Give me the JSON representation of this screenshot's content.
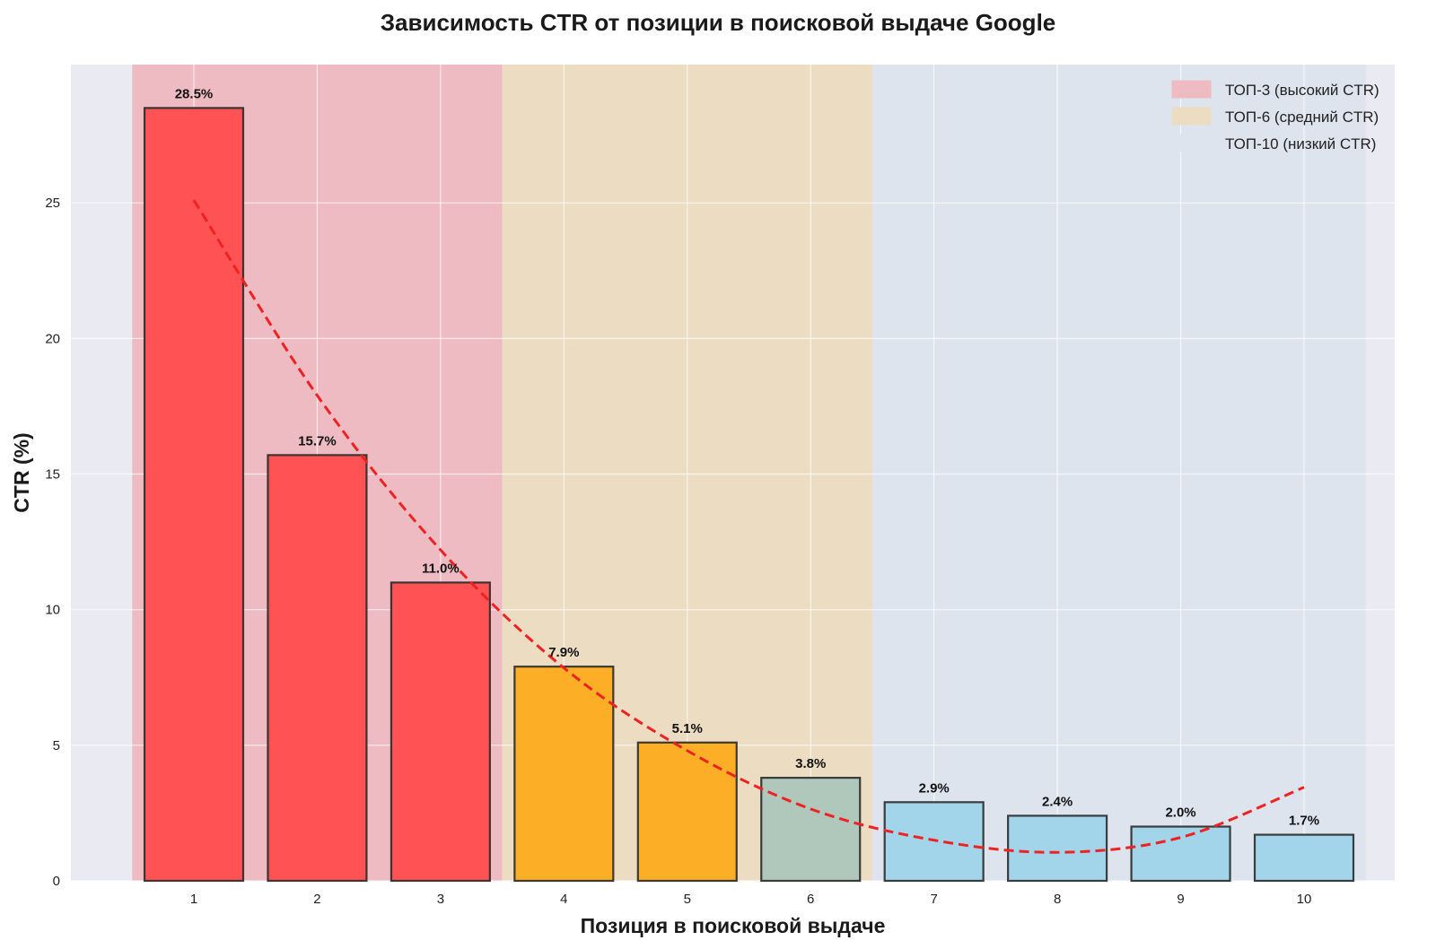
{
  "chart_data": {
    "type": "bar",
    "title": "Зависимость CTR от позиции в поисковой выдаче Google",
    "xlabel": "Позиция в поисковой выдаче",
    "ylabel": "CTR (%)",
    "categories": [
      "1",
      "2",
      "3",
      "4",
      "5",
      "6",
      "7",
      "8",
      "9",
      "10"
    ],
    "values": [
      28.5,
      15.7,
      11.0,
      7.9,
      5.1,
      3.8,
      2.9,
      2.4,
      2.0,
      1.7
    ],
    "data_labels": [
      "28.5%",
      "15.7%",
      "11.0%",
      "7.9%",
      "5.1%",
      "3.8%",
      "2.9%",
      "2.4%",
      "2.0%",
      "1.7%"
    ],
    "bar_colors": [
      "#ff5254",
      "#ff5254",
      "#ff5254",
      "#fcaf26",
      "#fcaf26",
      "#b0c7bc",
      "#a3d5ea",
      "#a3d5ea",
      "#a3d5ea",
      "#a3d5ea"
    ],
    "ylim": [
      0,
      30
    ],
    "yticks": [
      0,
      5,
      10,
      15,
      20,
      25
    ],
    "grid": true,
    "legend_position": "top-right",
    "regions": [
      {
        "label": "ТОП-3 (высокий CTR)",
        "from": 0.5,
        "to": 3.5,
        "color": "#eebbc2"
      },
      {
        "label": "ТОП-6 (средний CTR)",
        "from": 3.5,
        "to": 6.5,
        "color": "#ecdcc2"
      },
      {
        "label": "ТОП-10 (низкий CTR)",
        "from": 6.5,
        "to": 10.5,
        "color": "#dde4ee"
      }
    ],
    "trend_line": {
      "style": "dashed",
      "color": "#ee2222",
      "x": [
        1,
        2,
        3,
        4,
        5,
        6,
        7,
        8,
        9,
        10
      ],
      "y": [
        25.1,
        17.9,
        12.2,
        7.85,
        4.8,
        2.65,
        1.5,
        1.05,
        1.6,
        3.45
      ]
    }
  }
}
